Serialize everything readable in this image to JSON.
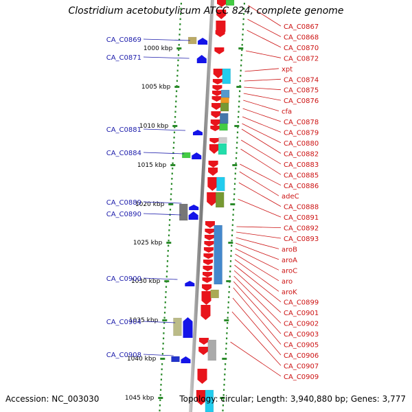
{
  "title": "Clostridium acetobutylicum ATCC 824, complete genome",
  "accession_label": "Accession: NC_003030",
  "topology_label": "Topology: circular; Length: 3,940,880 bp; Genes: 3,777",
  "scale_labels": [
    "1000 kbp",
    "1005 kbp",
    "1010 kbp",
    "1015 kbp",
    "1020 kbp",
    "1025 kbp",
    "1030 kbp",
    "1035 kbp",
    "1040 kbp",
    "1045 kbp"
  ],
  "left_genes": [
    "CA_C0869",
    "CA_C0871",
    "CA_C0881",
    "CA_C0884",
    "CA_C0889",
    "CA_C0890",
    "CA_C0900",
    "CA_C0904",
    "CA_C0908"
  ],
  "right_genes": [
    "CA_C0867",
    "CA_C0868",
    "CA_C0870",
    "CA_C0872",
    "xpt",
    "CA_C0874",
    "CA_C0875",
    "CA_C0876",
    "cfa",
    "CA_C0878",
    "CA_C0879",
    "CA_C0880",
    "CA_C0882",
    "CA_C0883",
    "CA_C0885",
    "CA_C0886",
    "adeC",
    "CA_C0888",
    "CA_C0891",
    "CA_C0892",
    "CA_C0893",
    "aroB",
    "aroA",
    "aroC",
    "aro",
    "aroK",
    "CA_C0899",
    "CA_C0901",
    "CA_C0902",
    "CA_C0903",
    "CA_C0905",
    "CA_C0906",
    "CA_C0907",
    "CA_C0909"
  ],
  "colors": {
    "forward": "#e8141b",
    "reverse": "#1414e8",
    "left_label": "#1a1aaa",
    "right_label": "#cc1111",
    "backbone": "#888888",
    "ticks": "#2a8a2a"
  }
}
